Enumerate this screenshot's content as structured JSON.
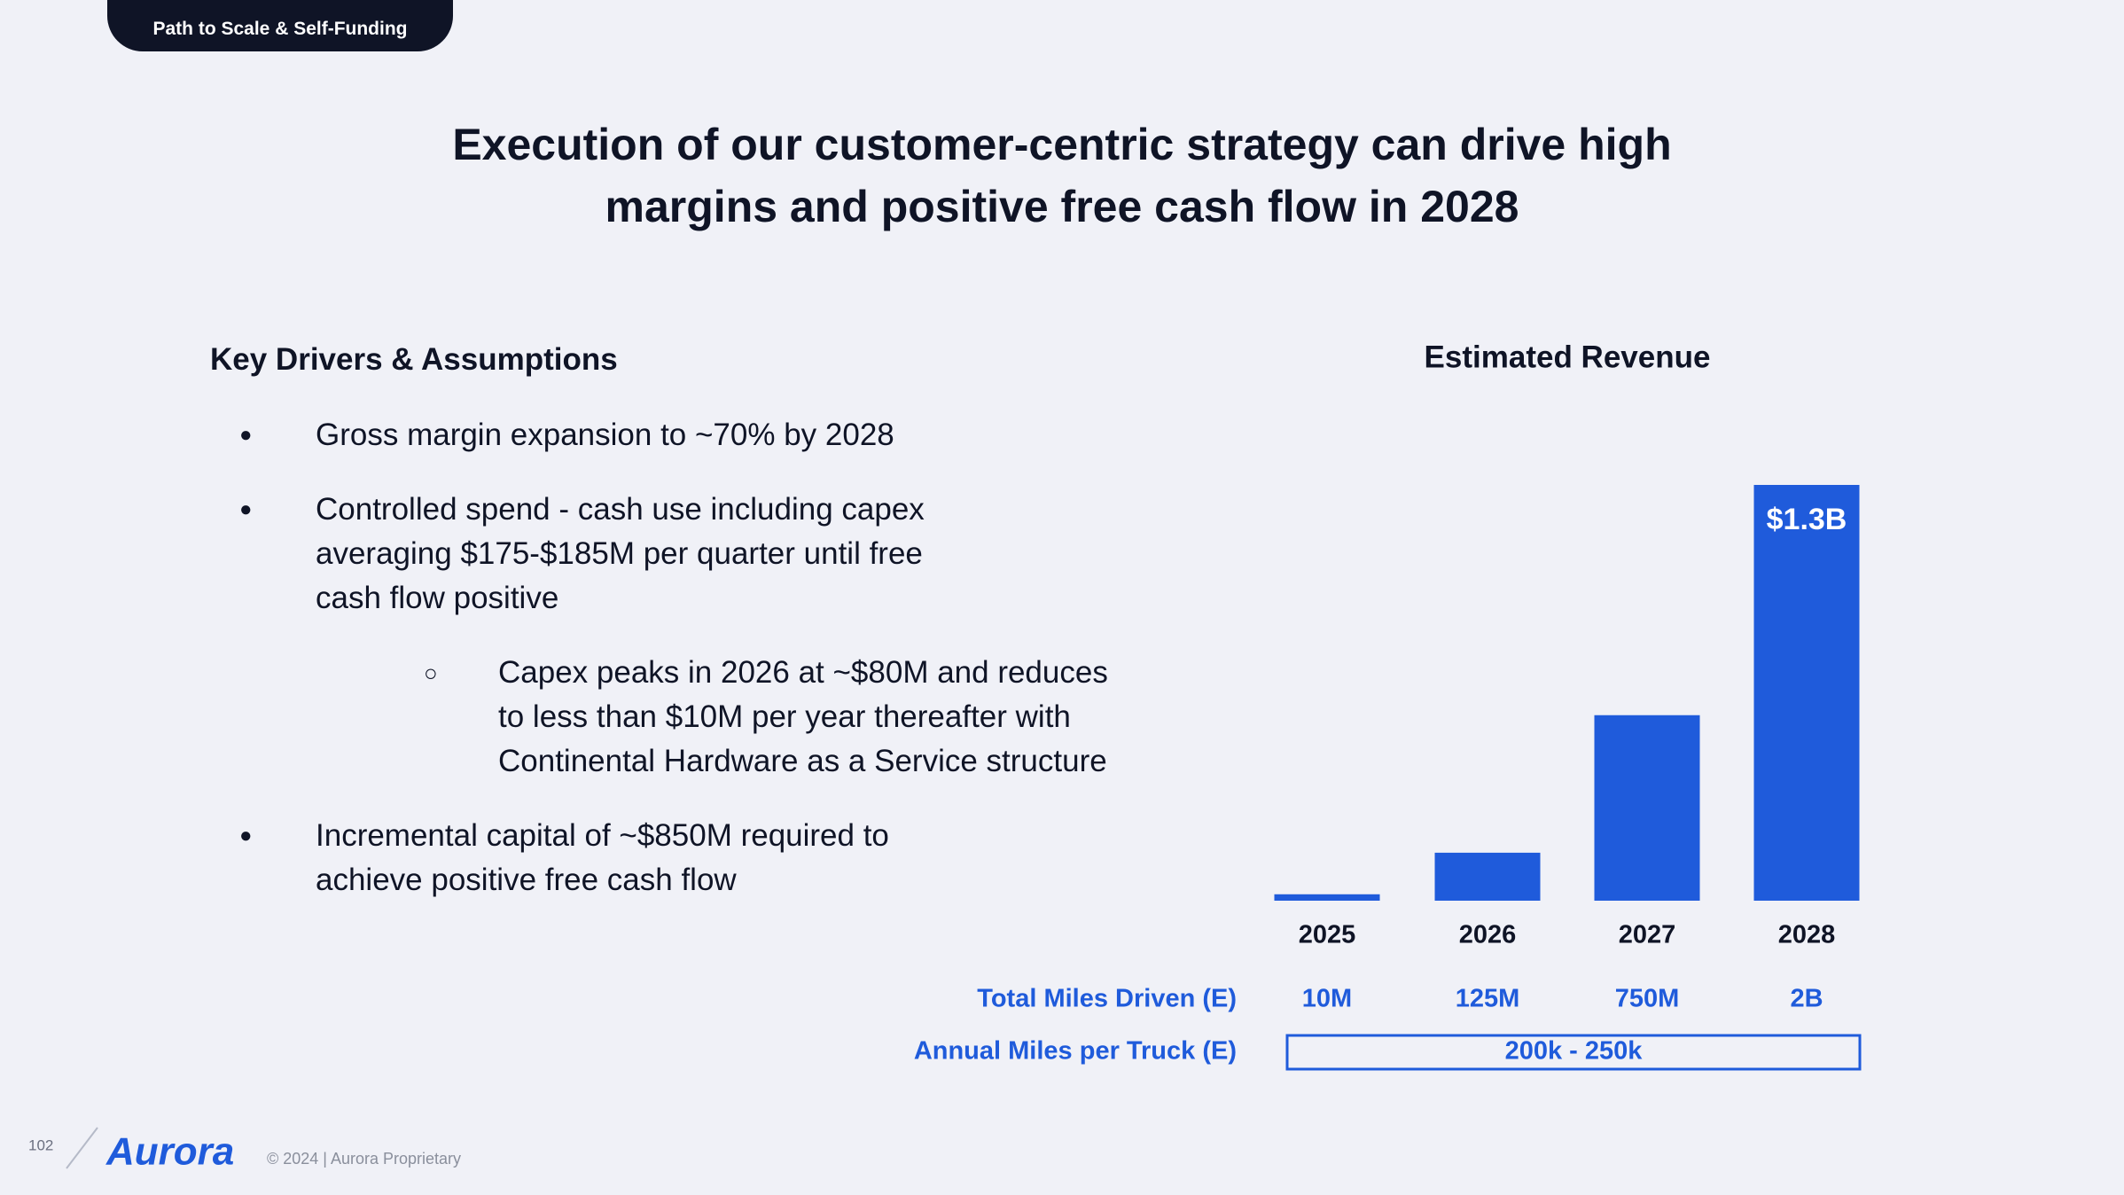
{
  "tag": "Path to Scale & Self-Funding",
  "title": "Execution of our customer-centric strategy can drive high margins and positive free cash flow in 2028",
  "drivers": {
    "heading": "Key Drivers & Assumptions",
    "bullets": [
      {
        "text": "Gross margin expansion to ~70% by 2028"
      },
      {
        "text": "Controlled spend - cash use including capex averaging $175-$185M per quarter until free cash flow positive",
        "sub": [
          "Capex peaks in 2026 at ~$80M and reduces to less than $10M per year thereafter with Continental Hardware as a Service structure"
        ]
      },
      {
        "text": "Incremental capital of ~$850M required to achieve positive free cash flow"
      }
    ]
  },
  "chart_data": {
    "type": "bar",
    "title": "Estimated Revenue",
    "categories": [
      "2025",
      "2026",
      "2027",
      "2028"
    ],
    "values": [
      0.02,
      0.15,
      0.58,
      1.3
    ],
    "value_labels": [
      null,
      null,
      null,
      "$1.3B"
    ],
    "color": "#1f5bdb"
  },
  "table": {
    "rows": [
      {
        "label": "Total Miles Driven (E)",
        "values": [
          "10M",
          "125M",
          "750M",
          "2B"
        ]
      },
      {
        "label": "Annual Miles per Truck (E)",
        "values": [
          "200k - 250k"
        ]
      }
    ]
  },
  "footer": {
    "page": "102",
    "logo": "Aurora",
    "copyright": "© 2024 | Aurora Proprietary"
  }
}
